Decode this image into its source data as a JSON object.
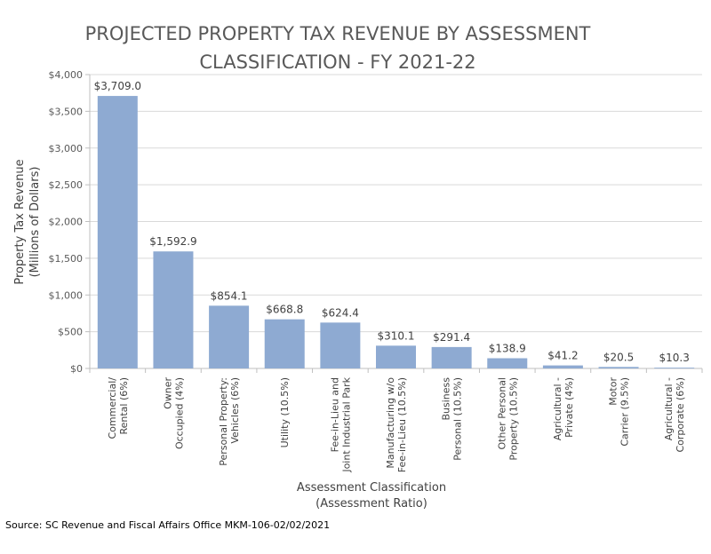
{
  "chart_data": {
    "type": "bar",
    "title": [
      "PROJECTED PROPERTY TAX REVENUE BY ASSESSMENT",
      "CLASSIFICATION - FY 2021-22"
    ],
    "ylabel": [
      "Property Tax Revenue",
      "(Millions of Dollars)"
    ],
    "xlabel": [
      "Assessment Classification",
      "(Assessment Ratio)"
    ],
    "ylim": [
      0,
      4000
    ],
    "yticks": [
      0,
      500,
      1000,
      1500,
      2000,
      2500,
      3000,
      3500,
      4000
    ],
    "ytick_labels": [
      "$0",
      "$500",
      "$1,000",
      "$1,500",
      "$2,000",
      "$2,500",
      "$3,000",
      "$3,500",
      "$4,000"
    ],
    "grid": true,
    "bar_color": "#8eaad2",
    "categories": [
      [
        "Commercial/",
        "Rental (6%)"
      ],
      [
        "Owner",
        "Occupied (4%)"
      ],
      [
        "Personal Property:",
        "Vehicles (6%)"
      ],
      [
        "Utility (10.5%)"
      ],
      [
        "Fee-in-Lieu and",
        "Joint Industrial Park"
      ],
      [
        "Manufacturing w/o",
        "Fee-in-Lieu (10.5%)"
      ],
      [
        "Business",
        "Personal (10.5%)"
      ],
      [
        "Other Personal",
        "Property (10.5%)"
      ],
      [
        "Agricultural -",
        "Private (4%)"
      ],
      [
        "Motor",
        "Carrier (9.5%)"
      ],
      [
        "Agricultural -",
        "Corporate (6%)"
      ]
    ],
    "values": [
      3709.0,
      1592.9,
      854.1,
      668.8,
      624.4,
      310.1,
      291.4,
      138.9,
      41.2,
      20.5,
      10.3
    ],
    "data_labels": [
      "$3,709.0",
      "$1,592.9",
      "$854.1",
      "$668.8",
      "$624.4",
      "$310.1",
      "$291.4",
      "$138.9",
      "$41.2",
      "$20.5",
      "$10.3"
    ]
  },
  "source": "Source: SC Revenue and Fiscal Affairs Office MKM-106-02/02/2021"
}
